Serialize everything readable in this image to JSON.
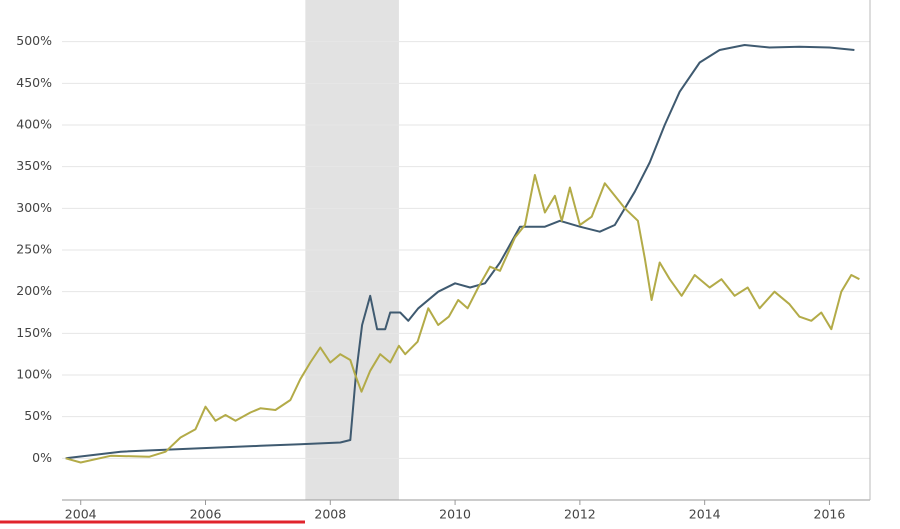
{
  "chart_data": {
    "type": "line",
    "xlim": [
      2003.7,
      2016.65
    ],
    "xticks": [
      2004,
      2006,
      2008,
      2010,
      2012,
      2014,
      2016
    ],
    "ylim": [
      -50,
      550
    ],
    "yticks": [
      {
        "value": 0,
        "label": "0%"
      },
      {
        "value": 50,
        "label": "50%"
      },
      {
        "value": 100,
        "label": "100%"
      },
      {
        "value": 150,
        "label": "150%"
      },
      {
        "value": 200,
        "label": "200%"
      },
      {
        "value": 250,
        "label": "250%"
      },
      {
        "value": 300,
        "label": "300%"
      },
      {
        "value": 350,
        "label": "350%"
      },
      {
        "value": 400,
        "label": "400%"
      },
      {
        "value": 450,
        "label": "450%"
      },
      {
        "value": 500,
        "label": "500%"
      }
    ],
    "grid": true,
    "shaded_range": [
      2007.6,
      2009.1
    ],
    "series": [
      {
        "color": "#3f5a70",
        "x": [
          2003.76,
          2004.64,
          2005.92,
          2006.88,
          2007.52,
          2008.16,
          2008.32,
          2008.41,
          2008.51,
          2008.64,
          2008.75,
          2008.88,
          2008.96,
          2009.12,
          2009.25,
          2009.41,
          2009.73,
          2010,
          2010.24,
          2010.48,
          2010.72,
          2011.04,
          2011.44,
          2011.68,
          2012,
          2012.32,
          2012.56,
          2012.88,
          2013.12,
          2013.36,
          2013.6,
          2013.92,
          2014.24,
          2014.64,
          2015.04,
          2015.52,
          2016,
          2016.4
        ],
        "values": [
          0,
          8,
          12,
          15,
          17,
          19,
          22,
          100,
          160,
          195,
          155,
          155,
          175,
          175,
          165,
          180,
          200,
          210,
          205,
          210,
          235,
          278,
          278,
          285,
          278,
          272,
          280,
          320,
          355,
          400,
          440,
          475,
          490,
          496,
          493,
          494,
          493,
          490
        ]
      },
      {
        "color": "#b3ab48",
        "x": [
          2003.76,
          2004,
          2004.48,
          2005.1,
          2005.36,
          2005.6,
          2005.84,
          2006,
          2006.16,
          2006.32,
          2006.48,
          2006.72,
          2006.88,
          2007.12,
          2007.36,
          2007.52,
          2007.68,
          2007.84,
          2008,
          2008.16,
          2008.32,
          2008.4,
          2008.5,
          2008.64,
          2008.8,
          2008.96,
          2009.1,
          2009.2,
          2009.4,
          2009.57,
          2009.73,
          2009.9,
          2010.05,
          2010.2,
          2010.37,
          2010.56,
          2010.72,
          2010.96,
          2011.12,
          2011.28,
          2011.44,
          2011.6,
          2011.71,
          2011.84,
          2012,
          2012.19,
          2012.4,
          2012.56,
          2012.72,
          2012.93,
          2013.04,
          2013.15,
          2013.28,
          2013.44,
          2013.63,
          2013.84,
          2014.08,
          2014.27,
          2014.48,
          2014.69,
          2014.88,
          2015.12,
          2015.36,
          2015.52,
          2015.71,
          2015.87,
          2016.03,
          2016.19,
          2016.35,
          2016.48
        ],
        "values": [
          0,
          -5,
          3,
          2,
          8,
          25,
          35,
          62,
          45,
          52,
          45,
          55,
          60,
          58,
          70,
          95,
          115,
          133,
          115,
          125,
          118,
          100,
          80,
          105,
          125,
          115,
          135,
          125,
          140,
          180,
          160,
          170,
          190,
          180,
          205,
          230,
          225,
          265,
          280,
          340,
          295,
          315,
          285,
          325,
          280,
          290,
          330,
          315,
          300,
          285,
          240,
          190,
          235,
          215,
          195,
          220,
          205,
          215,
          195,
          205,
          180,
          200,
          185,
          170,
          165,
          175,
          155,
          200,
          220,
          215
        ]
      }
    ]
  }
}
